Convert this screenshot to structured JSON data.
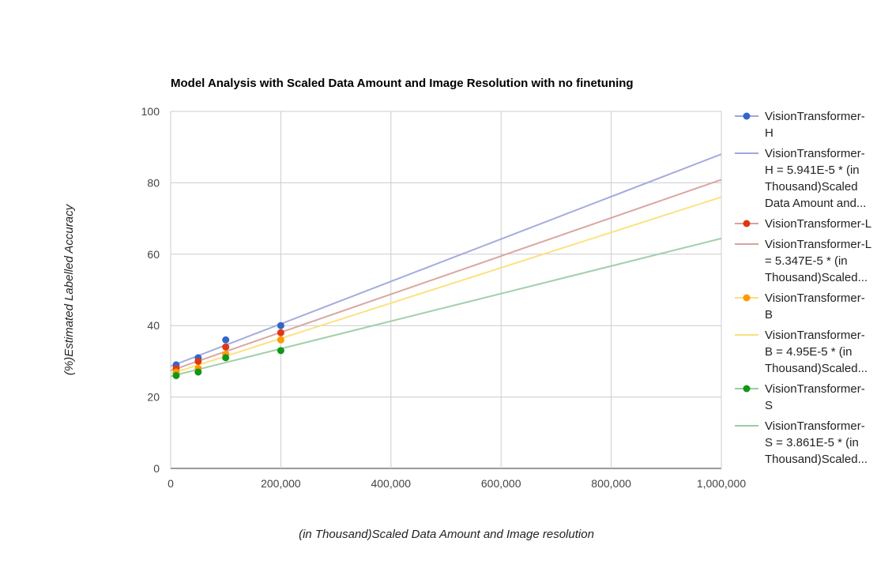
{
  "chart_data": {
    "type": "scatter",
    "title": "Model Analysis with Scaled Data Amount and Image Resolution with no finetuning",
    "xlabel": "(in Thousand)Scaled Data Amount and Image resolution",
    "ylabel": "(%)Estimated Labelled Accuracy",
    "xlim": [
      0,
      1000000
    ],
    "ylim": [
      0,
      100
    ],
    "x_ticks": [
      0,
      200000,
      400000,
      600000,
      800000,
      1000000
    ],
    "x_tick_labels": [
      "0",
      "200,000",
      "400,000",
      "600,000",
      "800,000",
      "1,000,000"
    ],
    "y_ticks": [
      0,
      20,
      40,
      60,
      80,
      100
    ],
    "y_tick_labels": [
      "0",
      "20",
      "40",
      "60",
      "80",
      "100"
    ],
    "grid": true,
    "legend_position": "right",
    "series": [
      {
        "name": "VisionTransformer-H",
        "color": "#3366cc",
        "x": [
          10000,
          50000,
          100000,
          200000
        ],
        "y": [
          29,
          31,
          36,
          40
        ],
        "trendline": {
          "slope": 5.941e-05,
          "intercept": 28.6,
          "color": "#9fa8da",
          "legend_lines": [
            "VisionTransformer-",
            "H = 5.941E-5 * (in",
            "Thousand)Scaled",
            "Data Amount and..."
          ]
        },
        "legend_lines": [
          "VisionTransformer-",
          "H"
        ]
      },
      {
        "name": "VisionTransformer-L",
        "color": "#dc3912",
        "x": [
          10000,
          50000,
          100000,
          200000
        ],
        "y": [
          28,
          30,
          34,
          38
        ],
        "trendline": {
          "slope": 5.347e-05,
          "intercept": 27.4,
          "color": "#d7a29d",
          "legend_lines": [
            "VisionTransformer-L",
            "= 5.347E-5 * (in",
            "Thousand)Scaled..."
          ]
        },
        "legend_lines": [
          "VisionTransformer-L"
        ]
      },
      {
        "name": "VisionTransformer-B",
        "color": "#ff9900",
        "x": [
          10000,
          50000,
          100000,
          200000
        ],
        "y": [
          27,
          28,
          32,
          36
        ],
        "trendline": {
          "slope": 4.95e-05,
          "intercept": 26.5,
          "color": "#fbe07a",
          "legend_lines": [
            "VisionTransformer-",
            "B = 4.95E-5 * (in",
            "Thousand)Scaled..."
          ]
        },
        "legend_lines": [
          "VisionTransformer-",
          "B"
        ]
      },
      {
        "name": "VisionTransformer-S",
        "color": "#109618",
        "x": [
          10000,
          50000,
          100000,
          200000
        ],
        "y": [
          26,
          27,
          31,
          33
        ],
        "trendline": {
          "slope": 3.861e-05,
          "intercept": 25.8,
          "color": "#9ccca2",
          "legend_lines": [
            "VisionTransformer-",
            "S = 3.861E-5 * (in",
            "Thousand)Scaled..."
          ]
        },
        "legend_lines": [
          "VisionTransformer-",
          "S"
        ]
      }
    ]
  }
}
